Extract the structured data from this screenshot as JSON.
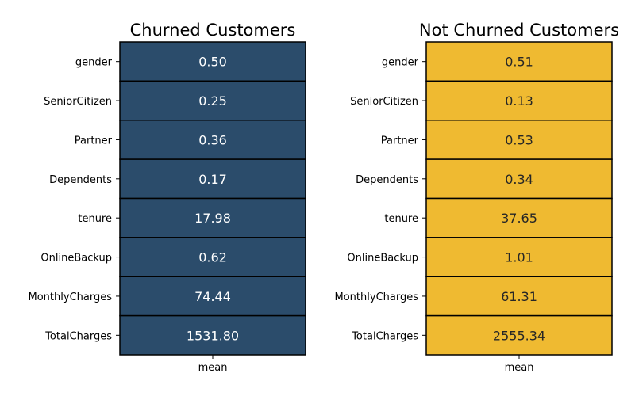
{
  "chart_data": [
    {
      "type": "heatmap",
      "title": "Churned Customers",
      "rows": [
        "gender",
        "SeniorCitizen",
        "Partner",
        "Dependents",
        "tenure",
        "OnlineBackup",
        "MonthlyCharges",
        "TotalCharges"
      ],
      "columns": [
        "mean"
      ],
      "values": [
        "0.50",
        "0.25",
        "0.36",
        "0.17",
        "17.98",
        "0.62",
        "74.44",
        "1531.80"
      ],
      "cell_color": "#2b4c6b",
      "text_color": "#ffffff",
      "border_color": "#000000"
    },
    {
      "type": "heatmap",
      "title": "Not Churned Customers",
      "rows": [
        "gender",
        "SeniorCitizen",
        "Partner",
        "Dependents",
        "tenure",
        "OnlineBackup",
        "MonthlyCharges",
        "TotalCharges"
      ],
      "columns": [
        "mean"
      ],
      "values": [
        "0.51",
        "0.13",
        "0.53",
        "0.34",
        "37.65",
        "1.01",
        "61.31",
        "2555.34"
      ],
      "cell_color": "#efba31",
      "text_color": "#262626",
      "border_color": "#000000"
    }
  ]
}
